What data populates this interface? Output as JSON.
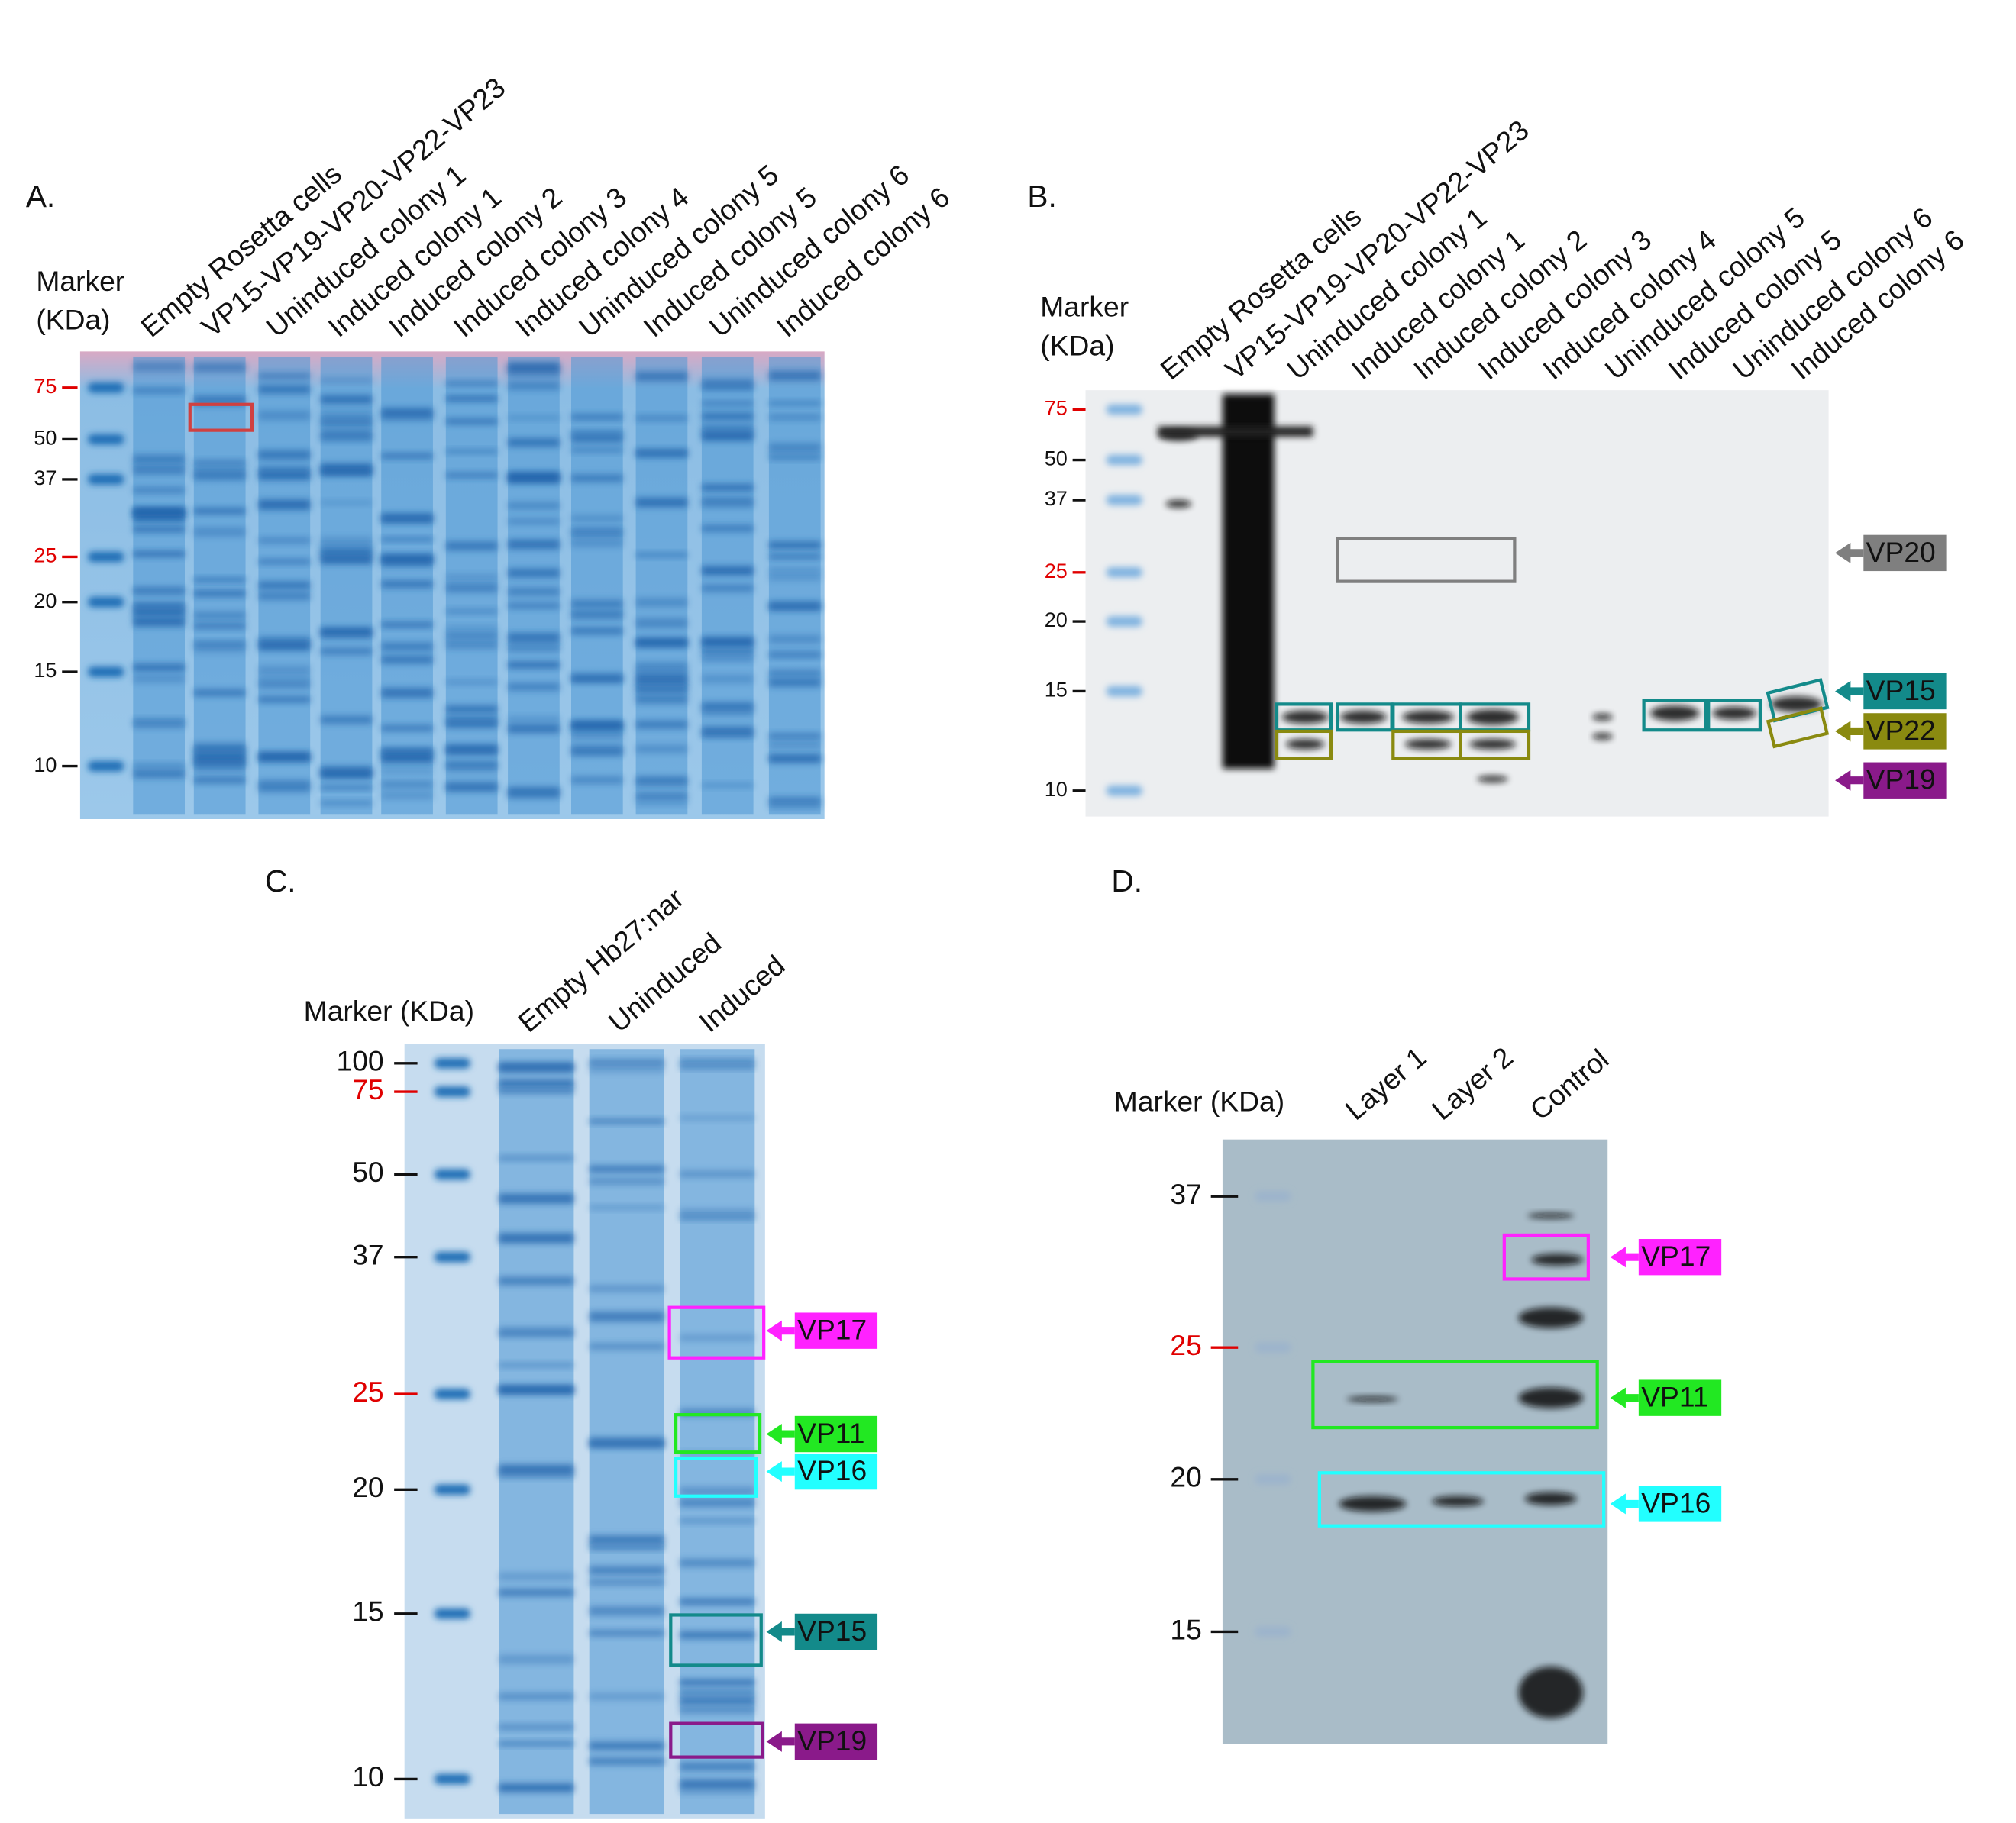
{
  "panels": [
    {
      "label": "A.",
      "marker_label": [
        "Marker",
        "(KDa)"
      ],
      "lanes": [
        "Empty Rosetta cells",
        "VP15-VP19-VP20-VP22-VP23",
        "Uninduced colony 1",
        "Induced colony 1",
        "Induced colony 2",
        "Induced colony 3",
        "Induced colony 4",
        "Uninduced colony 5",
        "Induced colony 5",
        "Uninduced colony 6",
        "Induced colony 6"
      ],
      "marker_ticks": [
        {
          "label": "75",
          "color": "#e00000"
        },
        {
          "label": "50",
          "color": "#111111"
        },
        {
          "label": "37",
          "color": "#111111"
        },
        {
          "label": "25",
          "color": "#e00000"
        },
        {
          "label": "20",
          "color": "#111111"
        },
        {
          "label": "15",
          "color": "#111111"
        },
        {
          "label": "10",
          "color": "#111111"
        }
      ],
      "annotations": []
    },
    {
      "label": "B.",
      "marker_label": [
        "Marker",
        "(KDa)"
      ],
      "lanes": [
        "Empty Rosetta cells",
        "VP15-VP19-VP20-VP22-VP23",
        "Uninduced colony 1",
        "Induced colony 1",
        "Induced colony 2",
        "Induced colony 3",
        "Induced colony 4",
        "Uninduced colony 5",
        "Induced colony 5",
        "Uninduced colony 6",
        "Induced colony 6"
      ],
      "marker_ticks": [
        {
          "label": "75",
          "color": "#e00000"
        },
        {
          "label": "50",
          "color": "#111111"
        },
        {
          "label": "37",
          "color": "#111111"
        },
        {
          "label": "25",
          "color": "#e00000"
        },
        {
          "label": "20",
          "color": "#111111"
        },
        {
          "label": "15",
          "color": "#111111"
        },
        {
          "label": "10",
          "color": "#111111"
        }
      ],
      "annotations": [
        {
          "label": "VP20",
          "color": "#7f7f7f"
        },
        {
          "label": "VP15",
          "color": "#138a8a"
        },
        {
          "label": "VP22",
          "color": "#8a8a10"
        },
        {
          "label": "VP19",
          "color": "#8a1a8a"
        }
      ]
    },
    {
      "label": "C.",
      "marker_label": [
        "Marker (KDa)"
      ],
      "lanes": [
        "Empty Hb27:nar",
        "Uninduced",
        "Induced"
      ],
      "marker_ticks": [
        {
          "label": "100",
          "color": "#111111"
        },
        {
          "label": "75",
          "color": "#e00000"
        },
        {
          "label": "50",
          "color": "#111111"
        },
        {
          "label": "37",
          "color": "#111111"
        },
        {
          "label": "25",
          "color": "#e00000"
        },
        {
          "label": "20",
          "color": "#111111"
        },
        {
          "label": "15",
          "color": "#111111"
        },
        {
          "label": "10",
          "color": "#111111"
        }
      ],
      "annotations": [
        {
          "label": "VP17",
          "color": "#ff22ff"
        },
        {
          "label": "VP11",
          "color": "#22e822"
        },
        {
          "label": "VP16",
          "color": "#22ffff"
        },
        {
          "label": "VP15",
          "color": "#138a8a"
        },
        {
          "label": "VP19",
          "color": "#8a1a8a"
        }
      ]
    },
    {
      "label": "D.",
      "marker_label": [
        "Marker (KDa)"
      ],
      "lanes": [
        "Layer 1",
        "Layer 2",
        "Control"
      ],
      "marker_ticks": [
        {
          "label": "37",
          "color": "#111111"
        },
        {
          "label": "25",
          "color": "#e00000"
        },
        {
          "label": "20",
          "color": "#111111"
        },
        {
          "label": "15",
          "color": "#111111"
        }
      ],
      "annotations": [
        {
          "label": "VP17",
          "color": "#ff22ff"
        },
        {
          "label": "VP11",
          "color": "#22e822"
        },
        {
          "label": "VP16",
          "color": "#22ffff"
        }
      ]
    }
  ]
}
